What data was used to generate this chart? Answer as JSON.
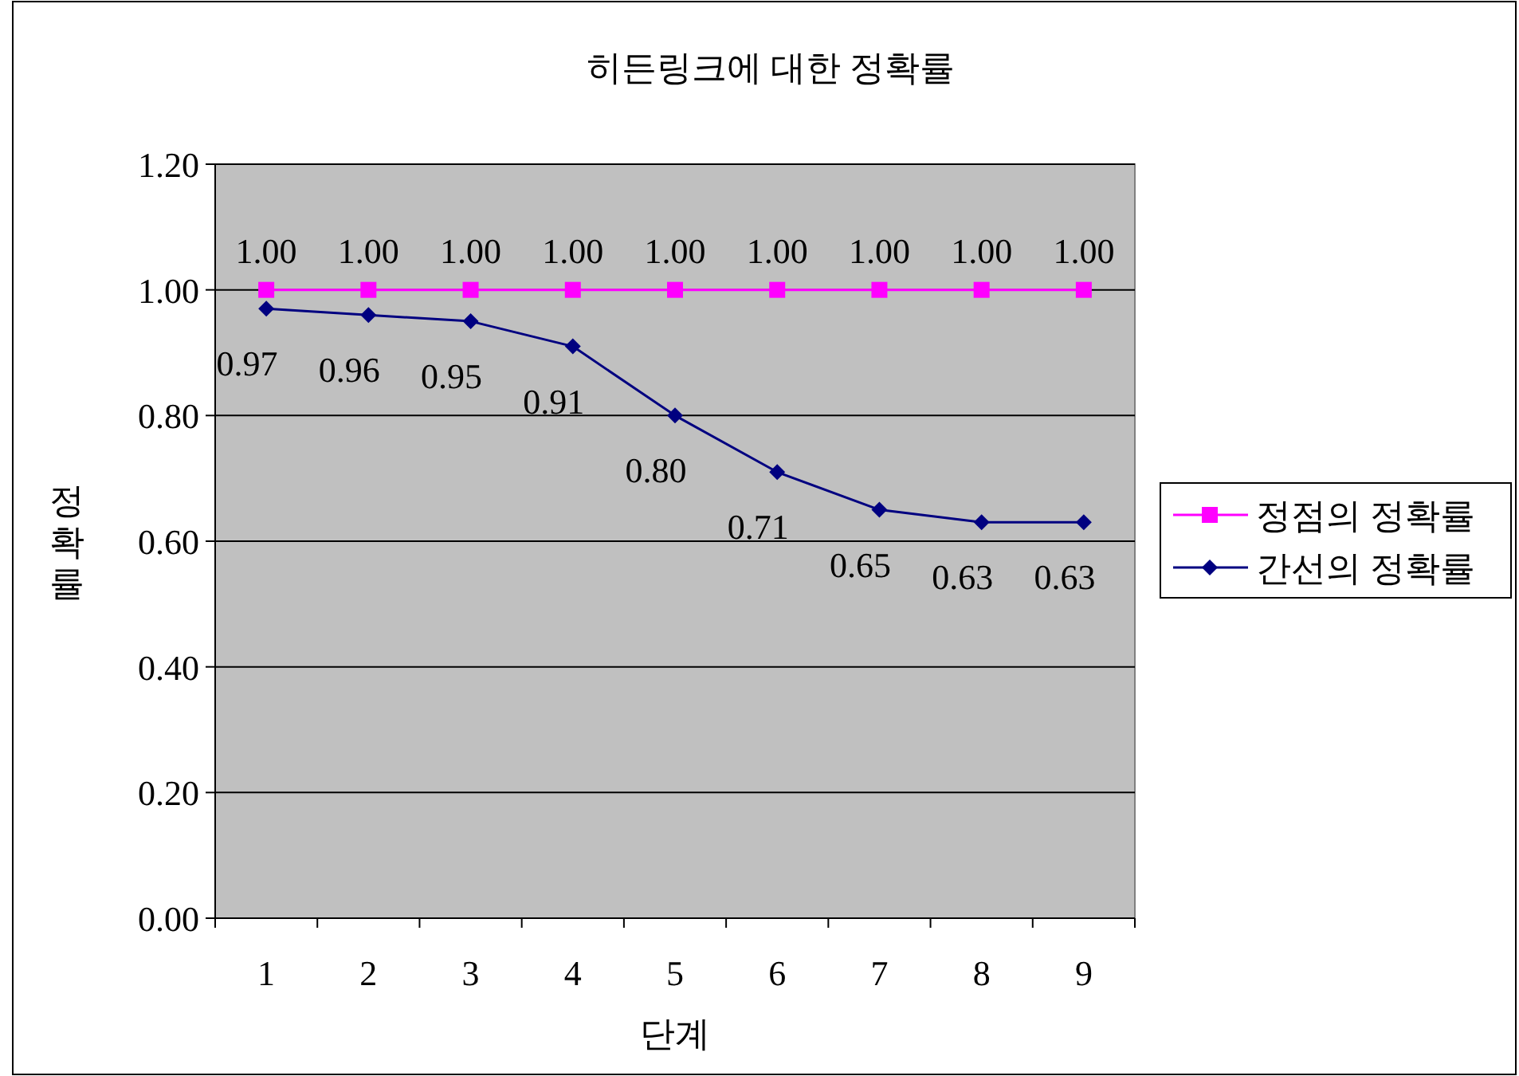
{
  "chart_data": {
    "type": "line",
    "title": "히든링크에 대한 정확률",
    "xlabel": "단계",
    "ylabel": "정확률",
    "categories": [
      "1",
      "2",
      "3",
      "4",
      "5",
      "6",
      "7",
      "8",
      "9"
    ],
    "series": [
      {
        "name": "정점의 정확률",
        "color": "#ff00ff",
        "marker": "square",
        "values": [
          1.0,
          1.0,
          1.0,
          1.0,
          1.0,
          1.0,
          1.0,
          1.0,
          1.0
        ],
        "value_labels": [
          "1.00",
          "1.00",
          "1.00",
          "1.00",
          "1.00",
          "1.00",
          "1.00",
          "1.00",
          "1.00"
        ]
      },
      {
        "name": "간선의 정확률",
        "color": "#000080",
        "marker": "diamond",
        "values": [
          0.97,
          0.96,
          0.95,
          0.91,
          0.8,
          0.71,
          0.65,
          0.63,
          0.63
        ],
        "value_labels": [
          "0.97",
          "0.96",
          "0.95",
          "0.91",
          "0.80",
          "0.71",
          "0.65",
          "0.63",
          "0.63"
        ]
      }
    ],
    "ylim": [
      0,
      1.2
    ],
    "yticks": [
      {
        "value": 0,
        "label": "0.00"
      },
      {
        "value": 0.2,
        "label": "0.20"
      },
      {
        "value": 0.4,
        "label": "0.40"
      },
      {
        "value": 0.6,
        "label": "0.60"
      },
      {
        "value": 0.8,
        "label": "0.80"
      },
      {
        "value": 1.0,
        "label": "1.00"
      },
      {
        "value": 1.2,
        "label": "1.20"
      }
    ],
    "grid": "y",
    "legend": "right",
    "line_style": "solid"
  }
}
